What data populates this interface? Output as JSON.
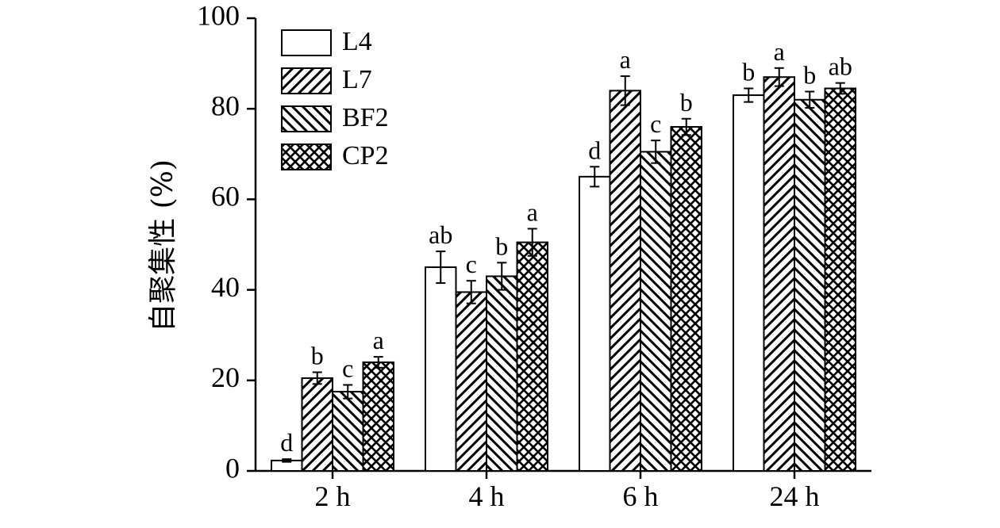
{
  "chart_data": {
    "type": "bar",
    "title": "",
    "xlabel": "",
    "ylabel": "自聚集性 (%)",
    "ylim": [
      0,
      100
    ],
    "yticks": [
      0,
      20,
      40,
      60,
      80,
      100
    ],
    "categories": [
      "2 h",
      "4 h",
      "6 h",
      "24 h"
    ],
    "legend_position": "top-left",
    "grid": false,
    "series": [
      {
        "name": "L4",
        "pattern": "none",
        "values": [
          2.3,
          45.0,
          65.0,
          83.0
        ],
        "errors": [
          0.3,
          3.5,
          2.2,
          1.5
        ],
        "letters": [
          "d",
          "ab",
          "d",
          "b"
        ]
      },
      {
        "name": "L7",
        "pattern": "diagonal",
        "values": [
          20.5,
          39.5,
          84.0,
          87.0
        ],
        "errors": [
          1.3,
          2.5,
          3.2,
          2.0
        ],
        "letters": [
          "b",
          "c",
          "a",
          "a"
        ]
      },
      {
        "name": "BF2",
        "pattern": "back-diagonal",
        "values": [
          17.5,
          43.0,
          70.5,
          82.0
        ],
        "errors": [
          1.5,
          3.0,
          2.5,
          1.8
        ],
        "letters": [
          "c",
          "b",
          "c",
          "b"
        ]
      },
      {
        "name": "CP2",
        "pattern": "crosshatch",
        "values": [
          24.0,
          50.5,
          76.0,
          84.5
        ],
        "errors": [
          1.2,
          3.0,
          1.8,
          1.2
        ],
        "letters": [
          "a",
          "a",
          "b",
          "ab"
        ]
      }
    ],
    "colors": {
      "stroke": "#000000",
      "fill": "#ffffff"
    }
  }
}
